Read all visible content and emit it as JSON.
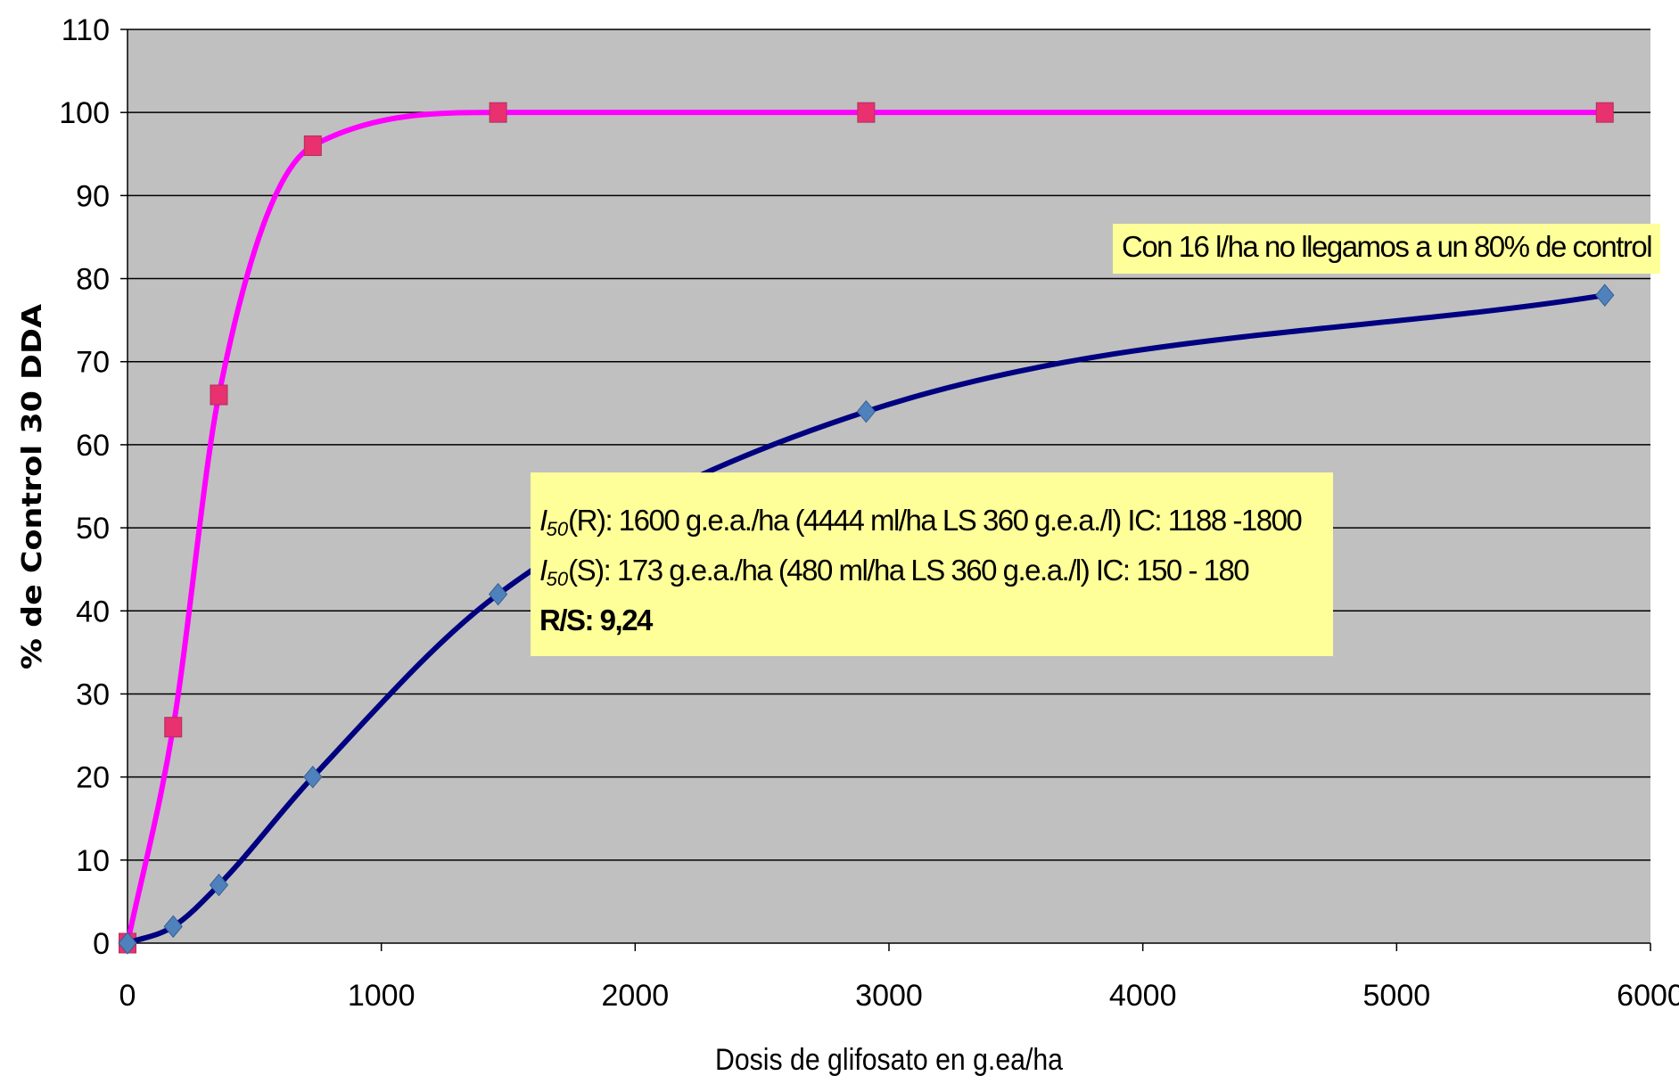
{
  "chart_data": {
    "type": "line",
    "xlabel": "Dosis de glifosato en g.ea/ha",
    "ylabel": "% de Control 30 DDA",
    "xlim": [
      0,
      6000
    ],
    "ylim": [
      0,
      110
    ],
    "xticks": [
      0,
      1000,
      2000,
      3000,
      4000,
      5000,
      6000
    ],
    "yticks": [
      0,
      10,
      20,
      30,
      40,
      50,
      60,
      70,
      80,
      90,
      100,
      110
    ],
    "grid": "horizontal",
    "background": "#c0c0c0",
    "series": [
      {
        "marker": "square",
        "color": "#ff00ff",
        "marker_color": "#e8316e",
        "x": [
          0,
          180,
          360,
          730,
          1460,
          2910,
          5820
        ],
        "y": [
          0,
          26,
          66,
          96,
          100,
          100,
          100
        ]
      },
      {
        "marker": "diamond",
        "color": "#000080",
        "marker_color": "#4f81bd",
        "x": [
          0,
          180,
          360,
          730,
          1460,
          2910,
          5820
        ],
        "y": [
          0,
          2,
          7,
          20,
          42,
          64,
          78
        ]
      }
    ],
    "annotations": {
      "top": "Con 16 l/ha no llegamos a un 80% de control",
      "box": {
        "line1_sym": "I",
        "line1_sub": "50",
        "line1_text": "(R): 1600 g.e.a./ha (4444 ml/ha LS 360 g.e.a./l) IC: 1188 -1800",
        "line2_sym": "I",
        "line2_sub": "50",
        "line2_text": "(S): 173 g.e.a./ha (480 ml/ha LS 360 g.e.a./l) IC: 150 - 180",
        "line3": "R/S: 9,24"
      }
    }
  }
}
